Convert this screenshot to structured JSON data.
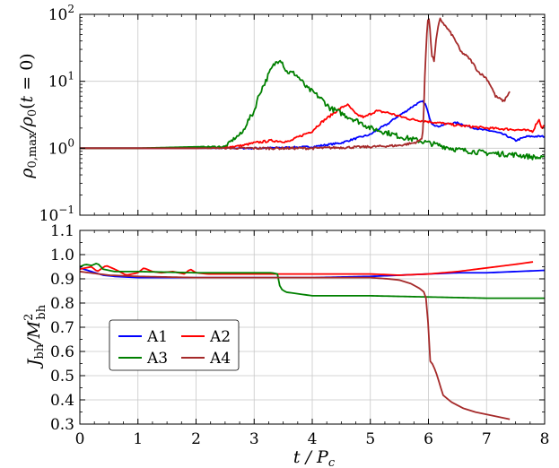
{
  "figure": {
    "xlabel_main": "t / P",
    "xlabel_sub": "c"
  },
  "chart_data": [
    {
      "type": "line",
      "panel": "top",
      "ylabel": "ρ0,max / ρ0(t = 0)",
      "yscale": "log",
      "xlim": [
        0,
        8
      ],
      "ylim": [
        0.1,
        100
      ],
      "grid": true,
      "x_ticks": [
        0,
        1,
        2,
        3,
        4,
        5,
        6,
        7,
        8
      ],
      "y_ticks": [
        0.1,
        1,
        10,
        100
      ],
      "y_tick_labels": [
        {
          "base": "10",
          "exp": "−1"
        },
        {
          "base": "10",
          "exp": "0"
        },
        {
          "base": "10",
          "exp": "1"
        },
        {
          "base": "10",
          "exp": "2"
        }
      ],
      "series": [
        {
          "name": "A1",
          "color": "#0000ff",
          "noise": 0.03,
          "x": [
            0,
            1,
            2,
            3,
            3.5,
            4,
            4.5,
            5,
            5.3,
            5.6,
            5.8,
            5.9,
            5.95,
            6.0,
            6.05,
            6.15,
            6.3,
            6.5,
            6.7,
            6.9,
            7.1,
            7.3,
            7.5,
            7.7,
            8
          ],
          "y": [
            1.0,
            1.0,
            1.0,
            1.0,
            1.02,
            1.05,
            1.2,
            1.6,
            2.3,
            3.5,
            4.6,
            5.0,
            4.5,
            3.2,
            2.4,
            2.1,
            2.3,
            2.4,
            2.1,
            1.9,
            1.8,
            1.6,
            1.3,
            1.5,
            1.5
          ]
        },
        {
          "name": "A2",
          "color": "#ff0000",
          "noise": 0.04,
          "x": [
            0,
            1,
            2,
            2.5,
            2.8,
            3,
            3.3,
            3.6,
            4.0,
            4.3,
            4.6,
            4.75,
            4.9,
            5.1,
            5.3,
            5.5,
            5.7,
            6.0,
            6.5,
            7.0,
            7.5,
            7.8,
            7.9,
            7.95,
            8
          ],
          "y": [
            1.0,
            1.0,
            1.0,
            1.03,
            1.1,
            1.2,
            1.3,
            1.25,
            1.8,
            3.0,
            4.5,
            3.2,
            2.9,
            3.6,
            3.4,
            3.0,
            2.7,
            2.5,
            2.2,
            2.0,
            1.9,
            1.8,
            2.7,
            2.0,
            2.2
          ]
        },
        {
          "name": "A3",
          "color": "#008000",
          "noise": 0.09,
          "x": [
            0,
            1,
            2,
            2.5,
            2.8,
            3.0,
            3.2,
            3.35,
            3.45,
            3.55,
            3.7,
            3.9,
            4.1,
            4.3,
            4.6,
            5.0,
            5.5,
            6.0,
            6.5,
            7.0,
            7.5,
            8
          ],
          "y": [
            1.0,
            1.0,
            1.05,
            1.05,
            1.7,
            3.5,
            10,
            18,
            22,
            14,
            13,
            8,
            6,
            4,
            3,
            2,
            1.5,
            1.2,
            0.95,
            0.85,
            0.8,
            0.7
          ]
        },
        {
          "name": "A4",
          "color": "#a52a2a",
          "noise": 0.04,
          "x": [
            0,
            1,
            2,
            3,
            4,
            5,
            5.5,
            5.75,
            5.85,
            5.9,
            5.93,
            5.96,
            6.0,
            6.05,
            6.1,
            6.2,
            6.3,
            6.4,
            6.55,
            6.7,
            6.85,
            7.0,
            7.15,
            7.3,
            7.4
          ],
          "y": [
            1.0,
            1.0,
            1.0,
            1.0,
            1.0,
            1.05,
            1.1,
            1.2,
            1.3,
            1.5,
            5,
            30,
            100,
            25,
            20,
            85,
            65,
            50,
            28,
            22,
            14,
            11,
            6,
            5,
            7
          ]
        }
      ]
    },
    {
      "type": "line",
      "panel": "bottom",
      "ylabel": "Jbh / M²bh",
      "xlim": [
        0,
        8
      ],
      "ylim": [
        0.3,
        1.1
      ],
      "grid": true,
      "x_ticks": [
        0,
        1,
        2,
        3,
        4,
        5,
        6,
        7,
        8
      ],
      "y_ticks": [
        0.3,
        0.4,
        0.5,
        0.6,
        0.7,
        0.8,
        0.9,
        1.0,
        1.1
      ],
      "y_tick_labels": [
        "0.3",
        "0.4",
        "0.5",
        "0.6",
        "0.7",
        "0.8",
        "0.9",
        "1.0",
        "1.1"
      ],
      "legend": {
        "position": "lower-left",
        "columns": 2
      },
      "series": [
        {
          "name": "A1",
          "color": "#0000ff",
          "x": [
            0,
            0.2,
            0.4,
            0.6,
            1,
            2,
            3,
            4,
            5,
            5.5,
            6,
            6.5,
            7,
            7.5,
            8
          ],
          "y": [
            0.945,
            0.93,
            0.915,
            0.91,
            0.905,
            0.905,
            0.905,
            0.905,
            0.91,
            0.915,
            0.92,
            0.925,
            0.925,
            0.93,
            0.935
          ]
        },
        {
          "name": "A2",
          "color": "#ff0000",
          "x": [
            0,
            0.2,
            0.3,
            0.45,
            0.6,
            0.8,
            1.0,
            1.1,
            1.25,
            1.4,
            1.6,
            1.8,
            1.9,
            2.0,
            2.2,
            2.6,
            3.0,
            4.0,
            5.0,
            5.5,
            6.0,
            6.5,
            7.0,
            7.5,
            7.8
          ],
          "y": [
            0.94,
            0.95,
            0.93,
            0.955,
            0.94,
            0.915,
            0.925,
            0.945,
            0.93,
            0.925,
            0.93,
            0.92,
            0.94,
            0.925,
            0.92,
            0.92,
            0.92,
            0.92,
            0.92,
            0.915,
            0.92,
            0.93,
            0.945,
            0.96,
            0.97
          ]
        },
        {
          "name": "A3",
          "color": "#008000",
          "x": [
            0,
            0.1,
            0.2,
            0.3,
            0.4,
            0.6,
            1,
            2,
            3,
            3.3,
            3.4,
            3.45,
            3.55,
            4,
            5,
            6,
            7,
            8
          ],
          "y": [
            0.95,
            0.96,
            0.955,
            0.965,
            0.94,
            0.93,
            0.93,
            0.925,
            0.925,
            0.925,
            0.92,
            0.86,
            0.845,
            0.83,
            0.83,
            0.825,
            0.82,
            0.82
          ]
        },
        {
          "name": "A4",
          "color": "#a52a2a",
          "x": [
            0,
            0.5,
            1,
            2,
            3,
            4,
            5,
            5.3,
            5.5,
            5.7,
            5.85,
            5.9,
            5.95,
            6.0,
            6.03,
            6.08,
            6.15,
            6.25,
            6.4,
            6.6,
            6.8,
            7.0,
            7.2,
            7.4
          ],
          "y": [
            0.93,
            0.915,
            0.91,
            0.905,
            0.905,
            0.905,
            0.905,
            0.9,
            0.895,
            0.88,
            0.86,
            0.85,
            0.84,
            0.7,
            0.56,
            0.545,
            0.5,
            0.42,
            0.39,
            0.365,
            0.35,
            0.34,
            0.33,
            0.32
          ]
        }
      ]
    }
  ]
}
